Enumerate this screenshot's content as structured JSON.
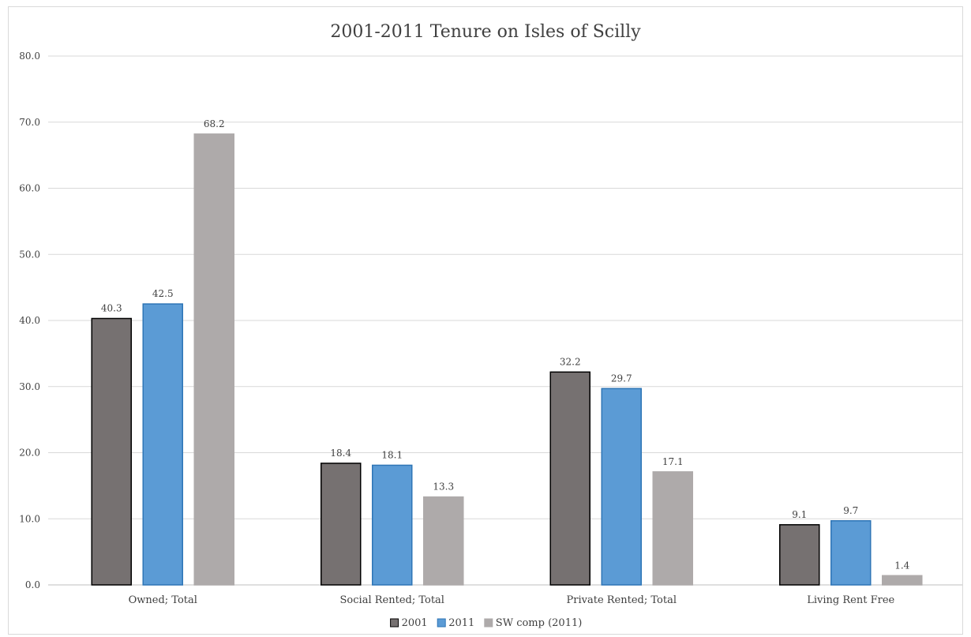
{
  "chart_data": {
    "type": "bar",
    "title": "2001-2011 Tenure on Isles of Scilly",
    "categories": [
      "Owned; Total",
      "Social Rented; Total",
      "Private Rented; Total",
      "Living Rent Free"
    ],
    "series": [
      {
        "name": "2001",
        "values": [
          40.3,
          18.4,
          32.2,
          9.1
        ],
        "color": "#767171",
        "stroke": "#000000"
      },
      {
        "name": "2011",
        "values": [
          42.5,
          18.1,
          29.7,
          9.7
        ],
        "color": "#5b9bd5",
        "stroke": "#2e75b6"
      },
      {
        "name": "SW comp (2011)",
        "values": [
          68.2,
          13.3,
          17.1,
          1.4
        ],
        "color": "#aeaaaa",
        "stroke": "#aeaaaa"
      }
    ],
    "ylim": [
      0,
      80
    ],
    "yticks": [
      "0.0",
      "10.0",
      "20.0",
      "30.0",
      "40.0",
      "50.0",
      "60.0",
      "70.0",
      "80.0"
    ],
    "data_labels": [
      [
        "40.3",
        "18.4",
        "32.2",
        "9.1"
      ],
      [
        "42.5",
        "18.1",
        "29.7",
        "9.7"
      ],
      [
        "68.2",
        "13.3",
        "17.1",
        "1.4"
      ]
    ],
    "grid": true,
    "legend_position": "bottom"
  }
}
